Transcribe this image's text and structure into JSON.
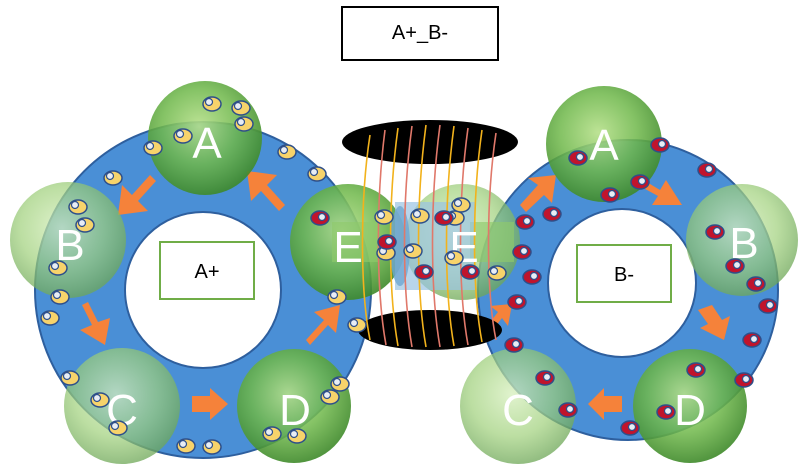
{
  "title": "A+_B-",
  "left_ring": {
    "center_label": "A+",
    "nodes": [
      "A",
      "B",
      "C",
      "D",
      "E"
    ]
  },
  "right_ring": {
    "center_label": "B-",
    "nodes": [
      "A",
      "B",
      "C",
      "D",
      "E"
    ]
  },
  "colors": {
    "ring": "#4a8fd6",
    "ring_border": "#2e5f9e",
    "node_green": "#6fb84a",
    "arrow": "#f5823a",
    "particle_yellow": "#f7d36b",
    "particle_red": "#c0142c",
    "coil_orange": "#f2b21c",
    "coil_pink": "#e0786a",
    "label_box_border": "#70ad47"
  }
}
